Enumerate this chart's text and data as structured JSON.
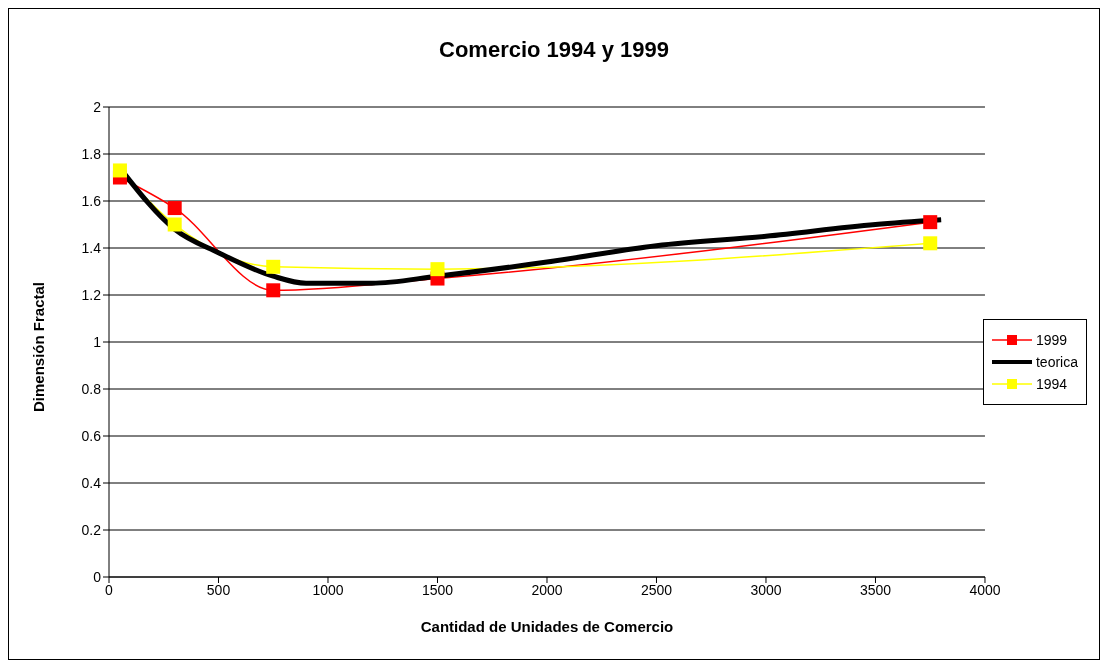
{
  "chart_data": {
    "type": "line",
    "title": "Comercio 1994 y 1999",
    "xlabel": "Cantidad de Unidades de Comercio",
    "ylabel": "Dimensión Fractal",
    "xlim": [
      0,
      4000
    ],
    "xticks": [
      0,
      500,
      1000,
      1500,
      2000,
      2500,
      3000,
      3500,
      4000
    ],
    "ylim": [
      0,
      2
    ],
    "yticks": [
      0,
      0.2,
      0.4,
      0.6,
      0.8,
      1,
      1.2,
      1.4,
      1.6,
      1.8,
      2
    ],
    "grid": "y",
    "legend": "right",
    "line_style": "solid",
    "series": [
      {
        "name": "1999",
        "color": "#ff0000",
        "marker": "square",
        "x": [
          50,
          300,
          750,
          1500,
          3750
        ],
        "values": [
          1.7,
          1.57,
          1.22,
          1.27,
          1.51
        ]
      },
      {
        "name": "teorica",
        "color": "#000000",
        "marker": "none",
        "x": [
          50,
          300,
          500,
          750,
          900,
          1200,
          1500,
          2000,
          2500,
          3000,
          3500,
          3800
        ],
        "values": [
          1.74,
          1.48,
          1.38,
          1.28,
          1.25,
          1.25,
          1.28,
          1.34,
          1.41,
          1.45,
          1.5,
          1.52
        ]
      },
      {
        "name": "1994",
        "color": "#ffff00",
        "marker": "square",
        "x": [
          50,
          300,
          750,
          1500,
          3750
        ],
        "values": [
          1.73,
          1.5,
          1.32,
          1.31,
          1.42
        ]
      }
    ]
  }
}
